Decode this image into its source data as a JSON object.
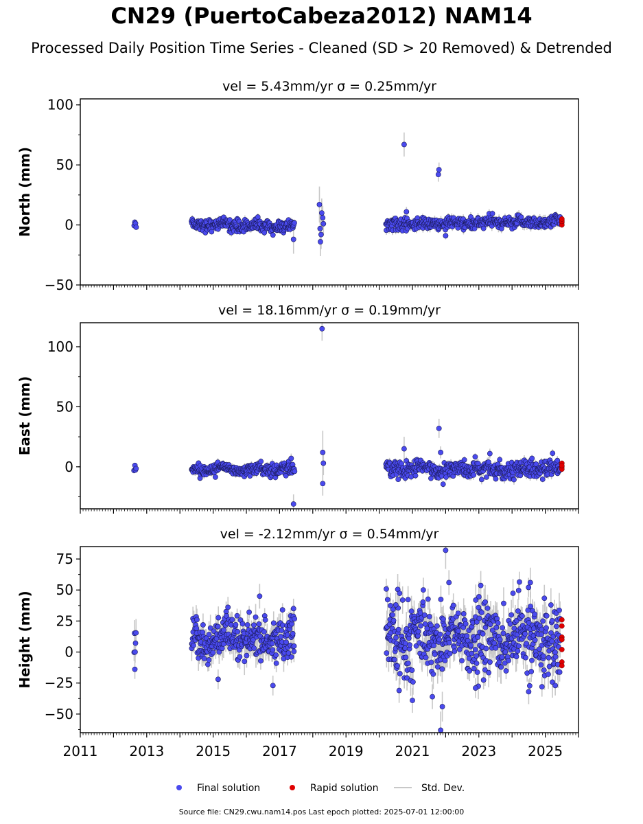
{
  "title": "CN29 (PuertoCabeza2012) NAM14",
  "subtitle": "Processed Daily Position Time Series - Cleaned (SD > 20 Removed) & Detrended",
  "footer": "Source file: CN29.cwu.nam14.pos  Last epoch plotted: 2025-07-01 12:00:00",
  "colors": {
    "final": "#4a4aee",
    "final_edge": "#1a1a5a",
    "rapid": "#e00000",
    "stddev": "#c8c8c8"
  },
  "legend": [
    {
      "label": "Final solution",
      "type": "marker",
      "color": "#4a4aee"
    },
    {
      "label": "Rapid solution",
      "type": "marker",
      "color": "#e00000"
    },
    {
      "label": "Std. Dev.",
      "type": "line",
      "color": "#c8c8c8"
    }
  ],
  "chart_data": [
    {
      "type": "scatter",
      "title": "vel = 5.43mm/yr   σ = 0.25mm/yr",
      "ylabel": "North (mm)",
      "xlim": [
        2011,
        2026
      ],
      "ylim": [
        -50,
        105
      ],
      "yticks": [
        -50,
        0,
        50,
        100
      ],
      "ytick_labels": [
        "−50",
        "0",
        "50",
        "100"
      ],
      "xticks": [
        2011,
        2013,
        2015,
        2017,
        2019,
        2021,
        2023,
        2025
      ],
      "show_xticklabels": false,
      "segments": [
        {
          "start": 2012.62,
          "end": 2012.68,
          "center": 2,
          "spread": 2,
          "err": 2,
          "n": 4
        },
        {
          "start": 2014.35,
          "end": 2017.45,
          "center": 1,
          "spread": 2.5,
          "err": 2.5,
          "n": 260,
          "drift": -3
        },
        {
          "start": 2020.2,
          "end": 2025.45,
          "center": 0,
          "spread": 2.5,
          "err": 3,
          "n": 420,
          "drift": 3
        }
      ],
      "outliers": [
        [
          2017.42,
          -12,
          12
        ],
        [
          2018.2,
          17,
          15
        ],
        [
          2018.22,
          -3,
          14
        ],
        [
          2018.25,
          -8,
          12
        ],
        [
          2018.27,
          10,
          12
        ],
        [
          2018.3,
          6,
          10
        ],
        [
          2018.32,
          1,
          10
        ],
        [
          2018.23,
          -14,
          12
        ],
        [
          2020.75,
          67,
          10
        ],
        [
          2021.8,
          46,
          6
        ],
        [
          2021.78,
          42,
          6
        ],
        [
          2020.82,
          11,
          4
        ],
        [
          2022.0,
          -9,
          3
        ]
      ],
      "rapid": [
        [
          2025.5,
          4
        ],
        [
          2025.5,
          2
        ],
        [
          2025.5,
          0
        ],
        [
          2025.5,
          3
        ],
        [
          2025.5,
          5
        ]
      ]
    },
    {
      "type": "scatter",
      "title": "vel = 18.16mm/yr   σ = 0.19mm/yr",
      "ylabel": "East (mm)",
      "xlim": [
        2011,
        2026
      ],
      "ylim": [
        -35,
        120
      ],
      "yticks": [
        0,
        50,
        100
      ],
      "ytick_labels": [
        "0",
        "50",
        "100"
      ],
      "xticks": [
        2011,
        2013,
        2015,
        2017,
        2019,
        2021,
        2023,
        2025
      ],
      "show_xticklabels": false,
      "segments": [
        {
          "start": 2012.62,
          "end": 2012.68,
          "center": -2,
          "spread": 2,
          "err": 2,
          "n": 4
        },
        {
          "start": 2014.35,
          "end": 2017.45,
          "center": -2,
          "spread": 2.5,
          "err": 2.5,
          "n": 260,
          "drift": 0
        },
        {
          "start": 2020.2,
          "end": 2025.45,
          "center": -2,
          "spread": 3.5,
          "err": 3,
          "n": 420,
          "drift": 0
        }
      ],
      "outliers": [
        [
          2018.28,
          115,
          10
        ],
        [
          2018.3,
          12,
          18
        ],
        [
          2018.32,
          3,
          10
        ],
        [
          2018.3,
          -14,
          10
        ],
        [
          2017.42,
          -31,
          8
        ],
        [
          2017.35,
          7,
          4
        ],
        [
          2020.75,
          15,
          10
        ],
        [
          2021.8,
          32,
          8
        ],
        [
          2021.85,
          12,
          5
        ],
        [
          2024.6,
          7,
          3
        ]
      ],
      "rapid": [
        [
          2025.5,
          3
        ],
        [
          2025.5,
          0
        ],
        [
          2025.5,
          -2
        ],
        [
          2025.5,
          1
        ]
      ]
    },
    {
      "type": "scatter",
      "title": "vel = -2.12mm/yr   σ = 0.54mm/yr",
      "ylabel": "Height (mm)",
      "xlim": [
        2011,
        2026
      ],
      "ylim": [
        -65,
        85
      ],
      "yticks": [
        -50,
        -25,
        0,
        25,
        50,
        75
      ],
      "ytick_labels": [
        "−50",
        "−25",
        "0",
        "25",
        "50",
        "75"
      ],
      "xticks": [
        2011,
        2013,
        2015,
        2017,
        2019,
        2021,
        2023,
        2025
      ],
      "xtick_labels": [
        "2011",
        "2013",
        "2015",
        "2017",
        "2019",
        "2021",
        "2023",
        "2025"
      ],
      "show_xticklabels": true,
      "segments": [
        {
          "start": 2012.62,
          "end": 2012.68,
          "center": 10,
          "spread": 7,
          "err": 8,
          "n": 6
        },
        {
          "start": 2014.35,
          "end": 2017.45,
          "center": 10,
          "spread": 9,
          "err": 8,
          "n": 300,
          "drift": 0
        },
        {
          "start": 2020.2,
          "end": 2025.45,
          "center": 12,
          "spread": 14,
          "err": 10,
          "n": 520,
          "drift": -2
        }
      ],
      "outliers": [
        [
          2015.15,
          -22,
          8
        ],
        [
          2016.4,
          45,
          10
        ],
        [
          2016.8,
          -27,
          8
        ],
        [
          2017.42,
          35,
          8
        ],
        [
          2020.5,
          38,
          10
        ],
        [
          2021.0,
          -39,
          10
        ],
        [
          2021.6,
          -36,
          10
        ],
        [
          2021.9,
          -44,
          12
        ],
        [
          2021.85,
          -63,
          15
        ],
        [
          2022.0,
          82,
          15
        ],
        [
          2022.1,
          56,
          10
        ],
        [
          2024.55,
          56,
          12
        ],
        [
          2024.9,
          -28,
          8
        ],
        [
          2025.3,
          -27,
          8
        ],
        [
          2020.6,
          -31,
          10
        ],
        [
          2024.5,
          -32,
          10
        ],
        [
          2022.9,
          -29,
          8
        ]
      ],
      "rapid": [
        [
          2025.5,
          26
        ],
        [
          2025.5,
          21
        ],
        [
          2025.5,
          12
        ],
        [
          2025.5,
          10
        ],
        [
          2025.5,
          2
        ],
        [
          2025.5,
          -8
        ],
        [
          2025.5,
          -11
        ]
      ]
    }
  ]
}
